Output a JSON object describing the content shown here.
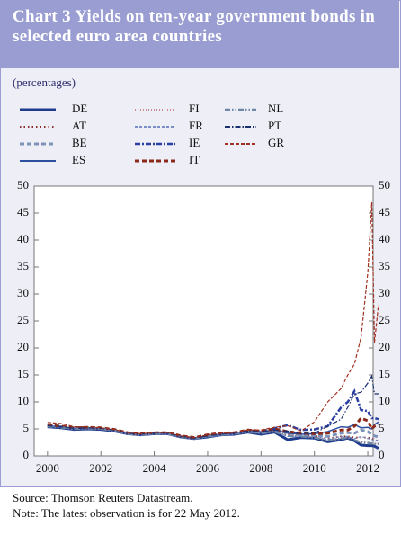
{
  "chart_data": {
    "type": "line",
    "title": "Chart 3 Yields on ten-year government bonds in selected euro area countries",
    "subtitle": "(percentages)",
    "source": "Source: Thomson Reuters Datastream.",
    "note": "Note: The latest observation is for 22 May 2012.",
    "x": [
      2000,
      2000.5,
      2001,
      2001.5,
      2002,
      2002.5,
      2003,
      2003.5,
      2004,
      2004.5,
      2005,
      2005.5,
      2006,
      2006.5,
      2007,
      2007.5,
      2008,
      2008.5,
      2009,
      2009.5,
      2010,
      2010.5,
      2011,
      2011.25,
      2011.5,
      2011.75,
      2012,
      2012.15,
      2012.25,
      2012.4
    ],
    "xlim": [
      1999.5,
      2012.2
    ],
    "xticks": [
      2000,
      2002,
      2004,
      2006,
      2008,
      2010,
      2012
    ],
    "ylim": [
      0,
      50
    ],
    "yticks": [
      0,
      5,
      10,
      15,
      20,
      25,
      30,
      35,
      40,
      45,
      50
    ],
    "y2lim": [
      0,
      50
    ],
    "y2ticks": [
      0,
      5,
      10,
      15,
      20,
      25,
      30,
      35,
      40,
      45,
      50
    ],
    "series": [
      {
        "name": "DE",
        "color": "#1f3c8c",
        "dash": "none",
        "width": 3,
        "values": [
          5.4,
          5.2,
          4.9,
          5.0,
          4.9,
          4.6,
          4.1,
          3.9,
          4.1,
          4.1,
          3.5,
          3.2,
          3.5,
          3.9,
          4.0,
          4.4,
          4.0,
          4.4,
          3.0,
          3.4,
          3.3,
          2.6,
          3.0,
          3.3,
          2.8,
          2.0,
          1.9,
          1.9,
          1.8,
          1.4
        ]
      },
      {
        "name": "AT",
        "color": "#8b2a2a",
        "dash": "1.5 3",
        "width": 2,
        "values": [
          5.6,
          5.4,
          5.1,
          5.2,
          5.1,
          4.8,
          4.2,
          4.0,
          4.2,
          4.2,
          3.6,
          3.3,
          3.7,
          4.0,
          4.2,
          4.5,
          4.3,
          4.7,
          4.1,
          3.9,
          3.7,
          3.2,
          3.6,
          3.6,
          3.4,
          3.4,
          3.4,
          3.2,
          3.0,
          2.7
        ]
      },
      {
        "name": "BE",
        "color": "#7d92b8",
        "dash": "5 3",
        "width": 3,
        "values": [
          5.7,
          5.5,
          5.1,
          5.2,
          5.1,
          4.8,
          4.2,
          4.0,
          4.2,
          4.2,
          3.6,
          3.3,
          3.7,
          4.0,
          4.2,
          4.6,
          4.4,
          4.8,
          4.3,
          3.9,
          3.8,
          3.6,
          4.2,
          4.3,
          4.2,
          4.8,
          4.5,
          3.9,
          3.7,
          3.5
        ]
      },
      {
        "name": "ES",
        "color": "#2e4fa0",
        "dash": "none",
        "width": 1.5,
        "values": [
          5.6,
          5.4,
          5.1,
          5.2,
          5.1,
          4.8,
          4.2,
          4.0,
          4.2,
          4.2,
          3.6,
          3.3,
          3.6,
          4.0,
          4.1,
          4.6,
          4.3,
          4.8,
          4.2,
          4.0,
          4.1,
          4.5,
          5.4,
          5.3,
          5.8,
          5.2,
          5.3,
          5.0,
          5.8,
          6.3
        ]
      },
      {
        "name": "FI",
        "color": "#d08a8a",
        "dash": "1 2",
        "width": 1.2,
        "values": [
          5.6,
          5.4,
          5.1,
          5.2,
          5.1,
          4.8,
          4.2,
          4.0,
          4.2,
          4.2,
          3.6,
          3.3,
          3.6,
          4.0,
          4.1,
          4.5,
          4.2,
          4.6,
          3.9,
          3.6,
          3.5,
          2.9,
          3.3,
          3.4,
          3.0,
          2.6,
          2.5,
          2.4,
          2.3,
          2.2
        ]
      },
      {
        "name": "FR",
        "color": "#7a8fc8",
        "dash": "3 2",
        "width": 1.2,
        "values": [
          5.5,
          5.3,
          5.0,
          5.1,
          5.0,
          4.7,
          4.1,
          3.9,
          4.1,
          4.1,
          3.5,
          3.2,
          3.5,
          3.9,
          4.0,
          4.5,
          4.2,
          4.5,
          3.6,
          3.6,
          3.5,
          3.1,
          3.6,
          3.6,
          3.2,
          3.6,
          3.2,
          3.0,
          2.9,
          2.8
        ]
      },
      {
        "name": "IE",
        "color": "#2a3f9f",
        "dash": "6 2 2 2",
        "width": 2.5,
        "values": [
          5.6,
          5.4,
          5.1,
          5.2,
          5.0,
          4.7,
          4.1,
          3.9,
          4.1,
          4.1,
          3.5,
          3.2,
          3.6,
          4.0,
          4.1,
          4.6,
          4.6,
          5.1,
          5.7,
          4.8,
          4.9,
          5.5,
          9.0,
          10.0,
          12.0,
          8.5,
          8.3,
          7.0,
          7.0,
          6.8
        ]
      },
      {
        "name": "IT",
        "color": "#8b2a1a",
        "dash": "5 3",
        "width": 3,
        "values": [
          5.7,
          5.5,
          5.2,
          5.3,
          5.2,
          4.9,
          4.3,
          4.1,
          4.3,
          4.3,
          3.7,
          3.4,
          3.9,
          4.2,
          4.3,
          4.8,
          4.6,
          5.0,
          4.5,
          4.2,
          4.1,
          4.2,
          4.8,
          4.8,
          5.5,
          7.0,
          6.5,
          5.0,
          5.5,
          5.8
        ]
      },
      {
        "name": "NL",
        "color": "#6f86a6",
        "dash": "6 2 1.5 2 1.5 2",
        "width": 2.5,
        "values": [
          5.5,
          5.3,
          5.0,
          5.1,
          5.0,
          4.7,
          4.1,
          3.9,
          4.1,
          4.1,
          3.5,
          3.2,
          3.6,
          3.9,
          4.1,
          4.5,
          4.2,
          4.5,
          3.7,
          3.6,
          3.4,
          2.9,
          3.2,
          3.4,
          2.9,
          2.5,
          2.4,
          2.3,
          2.2,
          2.2
        ]
      },
      {
        "name": "PT",
        "color": "#1a2f6f",
        "dash": "6 2 1.5 2",
        "width": 1.2,
        "values": [
          5.6,
          5.4,
          5.1,
          5.2,
          5.1,
          4.8,
          4.2,
          4.0,
          4.2,
          4.2,
          3.6,
          3.3,
          3.7,
          4.0,
          4.2,
          4.6,
          4.5,
          4.8,
          4.6,
          4.1,
          4.2,
          5.5,
          6.8,
          9.0,
          11.5,
          11.8,
          13.5,
          14.8,
          11.5,
          11.5
        ]
      },
      {
        "name": "GR",
        "color": "#a03020",
        "dash": "4 2",
        "width": 1.2,
        "values": [
          6.2,
          6.0,
          5.4,
          5.4,
          5.2,
          4.9,
          4.3,
          4.1,
          4.3,
          4.3,
          3.7,
          3.4,
          3.9,
          4.2,
          4.3,
          4.8,
          4.8,
          5.3,
          5.6,
          4.6,
          6.3,
          10.0,
          12.5,
          15.0,
          17.0,
          22.0,
          34.0,
          47.0,
          21.0,
          28.0
        ]
      }
    ]
  }
}
